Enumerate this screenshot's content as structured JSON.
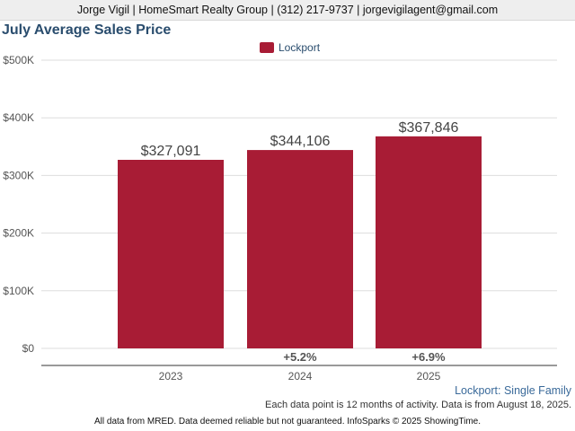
{
  "header": {
    "contact_line": "Jorge Vigil | HomeSmart Realty Group | (312) 217-9737 | jorgevigilagent@gmail.com"
  },
  "colors": {
    "bar": "#a81c35",
    "title": "#2a4d6e",
    "series_footer": "#3a6a9a"
  },
  "chart_data": {
    "type": "bar",
    "title": "July Average Sales Price",
    "xlabel": "",
    "ylabel": "",
    "categories": [
      "2023",
      "2024",
      "2025"
    ],
    "series": [
      {
        "name": "Lockport",
        "values": [
          327091,
          344106,
          367846
        ]
      }
    ],
    "data_labels": [
      "$327,091",
      "$344,106",
      "$367,846"
    ],
    "change_labels": [
      "",
      "+5.2%",
      "+6.9%"
    ],
    "ylim": [
      0,
      500000
    ],
    "yticks": [
      0,
      100000,
      200000,
      300000,
      400000,
      500000
    ],
    "ytick_labels": [
      "$0",
      "$100K",
      "$200K",
      "$300K",
      "$400K",
      "$500K"
    ],
    "grid": true,
    "legend_position": "top-center"
  },
  "footer": {
    "series_label": "Lockport: Single Family",
    "note": "Each data point is 12 months of activity. Data is from August 18, 2025.",
    "credit": "All data from MRED. Data deemed reliable but not guaranteed. InfoSparks © 2025 ShowingTime."
  }
}
